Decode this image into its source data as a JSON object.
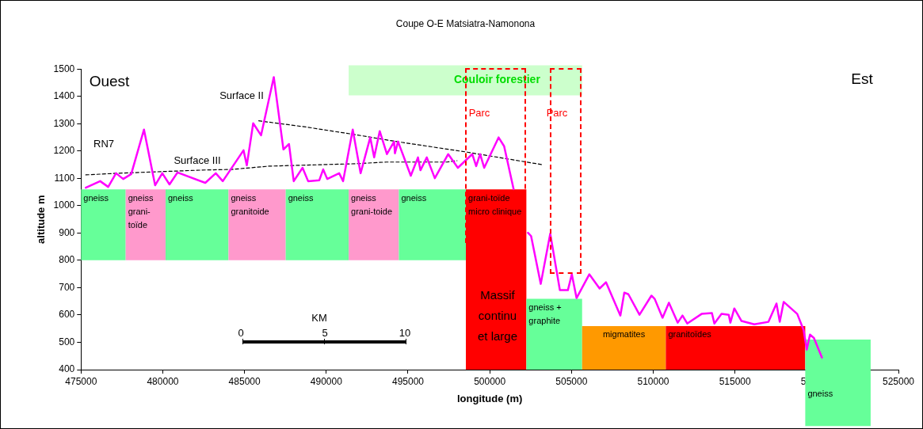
{
  "chart_data": {
    "type": "line",
    "title": "Coupe O-E Matsiatra-Namonona",
    "xlabel": "longitude (m)",
    "ylabel": "altitude m",
    "xlim": [
      475000,
      525000
    ],
    "xticks": [
      475000,
      480000,
      485000,
      490000,
      495000,
      500000,
      505000,
      510000,
      515000,
      520000,
      525000
    ],
    "ylim": [
      400,
      1500
    ],
    "yticks": [
      400,
      500,
      600,
      700,
      800,
      900,
      1000,
      1100,
      1200,
      1300,
      1400,
      1500
    ],
    "grid": false,
    "legend": false,
    "marker": "none",
    "series": [
      {
        "color": "#ff00ff",
        "line_style": "solid",
        "x": [
          475290,
          476170,
          476660,
          477140,
          477580,
          478070,
          478850,
          479530,
          479970,
          480410,
          480900,
          482600,
          483240,
          483670,
          484940,
          485140,
          485530,
          486010,
          486790,
          487380,
          487720,
          488010,
          488550,
          488890,
          489570,
          489810,
          490060,
          490790,
          491030,
          491620,
          492100,
          492690,
          492930,
          493270,
          493710,
          494150,
          494200,
          494390,
          495170,
          495610,
          495760,
          496150,
          496640,
          497460,
          498050,
          498930,
          499170,
          499410,
          499660,
          500540,
          500880,
          501460,
          501900,
          502340,
          502530,
          503120,
          503700,
          504290,
          504780,
          505020,
          505310,
          506090,
          506720,
          507110,
          507990,
          508230,
          508480,
          509160,
          509890,
          510090,
          510570,
          510960,
          511500,
          511790,
          512080,
          512960,
          513590,
          513740,
          514180,
          514620,
          514720,
          514960,
          515400,
          516180,
          517050,
          517540,
          517740,
          517980,
          518810,
          519200,
          519390,
          519590,
          519830,
          520320
        ],
        "values": [
          1066,
          1090,
          1069,
          1119,
          1098,
          1116,
          1279,
          1075,
          1119,
          1078,
          1122,
          1084,
          1119,
          1090,
          1203,
          1148,
          1302,
          1258,
          1471,
          1206,
          1226,
          1090,
          1139,
          1090,
          1093,
          1133,
          1098,
          1119,
          1090,
          1279,
          1119,
          1250,
          1177,
          1273,
          1189,
          1235,
          1192,
          1235,
          1110,
          1177,
          1130,
          1177,
          1101,
          1189,
          1139,
          1189,
          1145,
          1189,
          1139,
          1250,
          1218,
          1061,
          null,
          901,
          889,
          714,
          898,
          691,
          691,
          749,
          662,
          749,
          697,
          720,
          598,
          682,
          676,
          601,
          671,
          659,
          590,
          645,
          572,
          598,
          569,
          604,
          607,
          569,
          604,
          601,
          572,
          624,
          578,
          566,
          575,
          642,
          575,
          648,
          604,
          545,
          473,
          528,
          516,
          444
        ]
      },
      {
        "color": "#000000",
        "line_style": "dashed",
        "x": [
          485870,
          488790,
          491710,
          494300,
          498540,
          502240,
          503170
        ],
        "values": [
          1311,
          1288,
          1261,
          1235,
          1197,
          1160,
          1151
        ]
      },
      {
        "color": "#000000",
        "line_style": "dashed",
        "x": [
          475290,
          477240,
          482600,
          484210,
          486500,
          491860,
          493660,
          497370,
          498000
        ],
        "values": [
          1113,
          1119,
          1131,
          1133,
          1145,
          1154,
          1160,
          1160,
          1165
        ]
      }
    ],
    "bands": [
      {
        "axis": "x",
        "from": 475000,
        "to": 477730,
        "label": "gneiss",
        "color": "#66ff99"
      },
      {
        "axis": "x",
        "from": 477730,
        "to": 480170,
        "label": "gneiss grani-toïde",
        "color": "#ff99cc"
      },
      {
        "axis": "x",
        "from": 480170,
        "to": 484020,
        "label": "gneiss",
        "color": "#66ff99"
      },
      {
        "axis": "x",
        "from": 484020,
        "to": 487520,
        "label": "gneiss granitoide",
        "color": "#ff99cc"
      },
      {
        "axis": "x",
        "from": 487520,
        "to": 491370,
        "label": "gneiss",
        "color": "#66ff99"
      },
      {
        "axis": "x",
        "from": 491370,
        "to": 494440,
        "label": "gneiss grani-toide",
        "color": "#ff99cc"
      },
      {
        "axis": "x",
        "from": 494440,
        "to": 498540,
        "label": "gneiss",
        "color": "#66ff99"
      },
      {
        "axis": "x",
        "from": 498540,
        "to": 502240,
        "label": "grani-toïde micro clinique",
        "color": "#ff0000"
      },
      {
        "axis": "x",
        "from": 502240,
        "to": 505650,
        "label": "gneiss + graphite",
        "color": "#66ff99"
      },
      {
        "axis": "x",
        "from": 505650,
        "to": 510770,
        "label": "migmatites",
        "color": "#ff9900"
      },
      {
        "axis": "x",
        "from": 510770,
        "to": 519300,
        "label": "granitoïdes",
        "color": "#ff0000"
      },
      {
        "axis": "x",
        "from": 519300,
        "to": 523300,
        "label": "gneiss",
        "color": "#66ff99"
      },
      {
        "axis": "x",
        "from": 491370,
        "to": 505650,
        "label": "Couloir forestier",
        "color": "#ccffcc"
      }
    ],
    "annotations": [
      "Ouest",
      "Est",
      "RN7",
      "Surface II",
      "Surface III",
      "Massif continu et large",
      "KM",
      "0",
      "5",
      "10",
      "Parc",
      "Parc"
    ]
  }
}
